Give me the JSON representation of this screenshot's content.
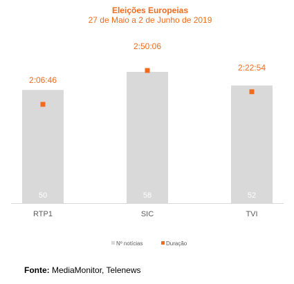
{
  "chart_data": {
    "type": "bar",
    "title": "Eleições Europeias",
    "subtitle": "27 de Maio a 2 de Junho de 2019",
    "categories": [
      "RTP1",
      "SIC",
      "TVI"
    ],
    "series": [
      {
        "name": "Nº notícias",
        "type": "bar",
        "values": [
          50,
          58,
          52
        ],
        "labels": [
          "50",
          "58",
          "52"
        ]
      },
      {
        "name": "Duração",
        "type": "scatter",
        "values": [
          "2:06:46",
          "2:50:06",
          "2:22:54"
        ],
        "labels": [
          "2:06:46",
          "2:50:06",
          "2:22:54"
        ]
      }
    ],
    "legend_position": "bottom",
    "grid": false,
    "colors": {
      "bar": "#d9d9d9",
      "marker": "#f26a1b",
      "title": "#f26a1b",
      "bar_label": "#ffffff",
      "axis_text": "#595959",
      "axis_line": "#d9d9d9",
      "legend_text": "#595959"
    }
  },
  "footer": {
    "label": "Fonte:",
    "text": " MediaMonitor, Telenews"
  }
}
